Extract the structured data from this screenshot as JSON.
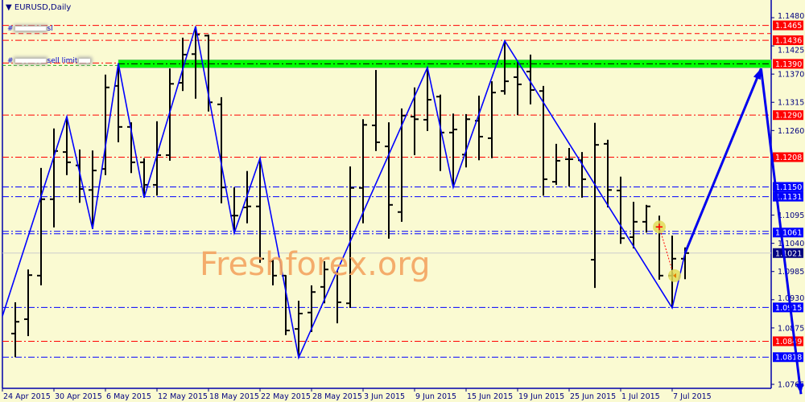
{
  "header": {
    "symbol_timeframe": "EURUSD,Daily",
    "collapse_icon": "triangle-down-icon"
  },
  "annotations": {
    "sl_prefix": "#",
    "sl_suffix": "sl",
    "limit_prefix": "#",
    "limit_suffix": "sell limit"
  },
  "watermark": "Freshforex.org",
  "colors": {
    "background": "#fafad2",
    "axis": "#000080",
    "red": "#ff0000",
    "blue": "#0000ff",
    "green_zone": "#00ff00",
    "current": "#000080",
    "watermark": "#f4a460"
  },
  "chart_data": {
    "type": "ohlc",
    "symbol": "EURUSD",
    "timeframe": "Daily",
    "ylim": [
      1.0765,
      1.148
    ],
    "y_ticks": [
      "1.1480",
      "1.1425",
      "1.1370",
      "1.1315",
      "1.1260",
      "1.1095",
      "1.1040",
      "1.0985",
      "1.0930",
      "1.0875",
      "1.0765"
    ],
    "x_ticks": [
      "24 Apr 2015",
      "30 Apr 2015",
      "6 May 2015",
      "12 May 2015",
      "18 May 2015",
      "22 May 2015",
      "28 May 2015",
      "3 Jun 2015",
      "9 Jun 2015",
      "15 Jun 2015",
      "19 Jun 2015",
      "25 Jun 2015",
      "1 Jul 2015",
      "7 Jul 2015"
    ],
    "bars": [
      [
        1.0864,
        1.0925,
        1.0818,
        1.0887
      ],
      [
        1.0892,
        1.0989,
        1.0859,
        1.0978
      ],
      [
        1.0977,
        1.1187,
        1.0958,
        1.1126
      ],
      [
        1.1126,
        1.1264,
        1.1071,
        1.122
      ],
      [
        1.1218,
        1.1287,
        1.1173,
        1.1198
      ],
      [
        1.1192,
        1.1223,
        1.1119,
        1.1146
      ],
      [
        1.1144,
        1.1221,
        1.1068,
        1.1182
      ],
      [
        1.1185,
        1.1369,
        1.1173,
        1.1344
      ],
      [
        1.1347,
        1.1391,
        1.1237,
        1.1267
      ],
      [
        1.1267,
        1.1276,
        1.1177,
        1.1198
      ],
      [
        1.1198,
        1.1206,
        1.1129,
        1.1154
      ],
      [
        1.1154,
        1.1278,
        1.1133,
        1.1212
      ],
      [
        1.1212,
        1.1381,
        1.1201,
        1.1351
      ],
      [
        1.1353,
        1.1441,
        1.1337,
        1.1408
      ],
      [
        1.1409,
        1.1463,
        1.1322,
        1.1447
      ],
      [
        1.1445,
        1.1447,
        1.1297,
        1.1315
      ],
      [
        1.1311,
        1.1325,
        1.1118,
        1.1149
      ],
      [
        1.1094,
        1.1149,
        1.106,
        1.1094
      ],
      [
        1.111,
        1.1181,
        1.1079,
        1.1112
      ],
      [
        1.1112,
        1.1206,
        1.1002,
        1.101
      ],
      [
        1.1005,
        1.1008,
        1.0958,
        1.0977
      ],
      [
        1.0977,
        1.0978,
        1.0861,
        1.087
      ],
      [
        1.0873,
        1.0928,
        1.0817,
        1.0903
      ],
      [
        1.0905,
        1.0958,
        1.0867,
        1.0945
      ],
      [
        1.0955,
        1.1005,
        1.0923,
        1.0989
      ],
      [
        1.0983,
        1.0986,
        1.0884,
        1.0925
      ],
      [
        1.0923,
        1.119,
        1.0914,
        1.1148
      ],
      [
        1.1148,
        1.1282,
        1.1079,
        1.1271
      ],
      [
        1.127,
        1.1378,
        1.122,
        1.1237
      ],
      [
        1.1229,
        1.1276,
        1.1049,
        1.1115
      ],
      [
        1.1101,
        1.1303,
        1.1082,
        1.1289
      ],
      [
        1.1287,
        1.1344,
        1.1212,
        1.1282
      ],
      [
        1.1281,
        1.1383,
        1.1259,
        1.132
      ],
      [
        1.1326,
        1.133,
        1.1181,
        1.1256
      ],
      [
        1.1256,
        1.1293,
        1.1149,
        1.1262
      ],
      [
        1.1213,
        1.1292,
        1.1188,
        1.1282
      ],
      [
        1.1279,
        1.1328,
        1.1202,
        1.1248
      ],
      [
        1.1245,
        1.1356,
        1.1206,
        1.1334
      ],
      [
        1.1337,
        1.1435,
        1.133,
        1.1356
      ],
      [
        1.1364,
        1.1394,
        1.129,
        1.135
      ],
      [
        1.1375,
        1.1408,
        1.1311,
        1.1339
      ],
      [
        1.1337,
        1.1347,
        1.1133,
        1.1165
      ],
      [
        1.116,
        1.1234,
        1.1154,
        1.1201
      ],
      [
        1.1204,
        1.1226,
        1.1151,
        1.1204
      ],
      [
        1.1202,
        1.1218,
        1.1129,
        1.1165
      ],
      [
        1.1008,
        1.1275,
        1.0953,
        1.1232
      ],
      [
        1.1234,
        1.1242,
        1.111,
        1.1144
      ],
      [
        1.1143,
        1.117,
        1.1039,
        1.105
      ],
      [
        1.1052,
        1.1121,
        1.103,
        1.1082
      ],
      [
        1.1082,
        1.1115,
        1.1061,
        1.1112
      ],
      [
        1.1072,
        1.1094,
        1.0969,
        1.0977
      ],
      [
        1.0977,
        1.1055,
        1.0914,
        1.101
      ],
      [
        1.101,
        1.1032,
        1.097,
        1.1021
      ]
    ],
    "levels": [
      {
        "price": 1.1465,
        "label": "1.1465",
        "color": "#ff0000",
        "style": "dashdot"
      },
      {
        "price": 1.1449,
        "label": "",
        "color": "#ff0000",
        "style": "dash"
      },
      {
        "price": 1.1436,
        "label": "1.1436",
        "color": "#ff0000",
        "style": "dashdot"
      },
      {
        "price": 1.139,
        "label": "1.1390",
        "color": "#ff0000",
        "style": "zone"
      },
      {
        "price": 1.129,
        "label": "1.1290",
        "color": "#ff0000",
        "style": "dashdot"
      },
      {
        "price": 1.1208,
        "label": "1.1208",
        "color": "#ff0000",
        "style": "dashdot"
      },
      {
        "price": 1.115,
        "label": "1.1150",
        "color": "#0000ff",
        "style": "dashdot"
      },
      {
        "price": 1.1131,
        "label": "1.1131",
        "color": "#0000ff",
        "style": "dashdot"
      },
      {
        "price": 1.1061,
        "label": "1.1061",
        "color": "#0000ff",
        "style": "double"
      },
      {
        "price": 1.1021,
        "label": "1.1021",
        "color": "#000080",
        "style": "current"
      },
      {
        "price": 1.0915,
        "label": "1.0915",
        "color": "#0000ff",
        "style": "dashdot"
      },
      {
        "price": 1.0849,
        "label": "1.0849",
        "color": "#ff0000",
        "style": "dashdot"
      },
      {
        "price": 1.0818,
        "label": "1.0818",
        "color": "#0000ff",
        "style": "dashdot"
      }
    ],
    "zigzag": [
      [
        -1,
        1.0898
      ],
      [
        4,
        1.1287
      ],
      [
        6,
        1.1068
      ],
      [
        8,
        1.1391
      ],
      [
        10,
        1.1129
      ],
      [
        14,
        1.1463
      ],
      [
        17,
        1.106
      ],
      [
        19,
        1.1206
      ],
      [
        22,
        1.0817
      ],
      [
        32,
        1.1383
      ],
      [
        34,
        1.1149
      ],
      [
        38,
        1.1435
      ],
      [
        51,
        1.0914
      ],
      [
        52,
        1.1021
      ]
    ],
    "forecast_arrows": [
      [
        [
          52,
          1.1021
        ],
        [
          57.9,
          1.1381
        ]
      ],
      [
        [
          57.9,
          1.1381
        ],
        [
          61,
          1.0746
        ]
      ]
    ],
    "trade_markers": [
      {
        "bar": 50,
        "price": 1.1072,
        "kind": "entry"
      },
      {
        "bar": 51,
        "price": 1.0977,
        "kind": "exit"
      }
    ]
  }
}
